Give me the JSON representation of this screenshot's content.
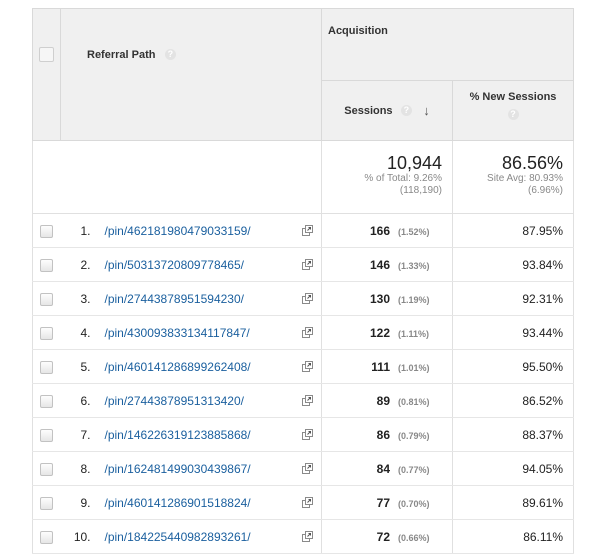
{
  "header": {
    "group_label": "Acquisition",
    "col_path": "Referral Path",
    "col_sessions": "Sessions",
    "col_new_sessions": "% New Sessions",
    "help_glyph": "?",
    "sort_glyph": "↓"
  },
  "summary": {
    "sessions": {
      "value": "10,944",
      "line1": "% of Total: 9.26%",
      "line2": "(118,190)"
    },
    "new_sessions": {
      "value": "86.56%",
      "line1": "Site Avg: 80.93%",
      "line2": "(6.96%)"
    }
  },
  "rows": [
    {
      "num": "1.",
      "path": "/pin/462181980479033159/",
      "sessions": "166",
      "pct": "(1.52%)",
      "new": "87.95%"
    },
    {
      "num": "2.",
      "path": "/pin/50313720809778465/",
      "sessions": "146",
      "pct": "(1.33%)",
      "new": "93.84%"
    },
    {
      "num": "3.",
      "path": "/pin/27443878951594230/",
      "sessions": "130",
      "pct": "(1.19%)",
      "new": "92.31%"
    },
    {
      "num": "4.",
      "path": "/pin/430093833134117847/",
      "sessions": "122",
      "pct": "(1.11%)",
      "new": "93.44%"
    },
    {
      "num": "5.",
      "path": "/pin/460141286899262408/",
      "sessions": "111",
      "pct": "(1.01%)",
      "new": "95.50%"
    },
    {
      "num": "6.",
      "path": "/pin/27443878951313420/",
      "sessions": "89",
      "pct": "(0.81%)",
      "new": "86.52%"
    },
    {
      "num": "7.",
      "path": "/pin/146226319123885868/",
      "sessions": "86",
      "pct": "(0.79%)",
      "new": "88.37%"
    },
    {
      "num": "8.",
      "path": "/pin/162481499030439867/",
      "sessions": "84",
      "pct": "(0.77%)",
      "new": "94.05%"
    },
    {
      "num": "9.",
      "path": "/pin/460141286901518824/",
      "sessions": "77",
      "pct": "(0.70%)",
      "new": "89.61%"
    },
    {
      "num": "10.",
      "path": "/pin/184225440982893261/",
      "sessions": "72",
      "pct": "(0.66%)",
      "new": "86.11%"
    }
  ]
}
